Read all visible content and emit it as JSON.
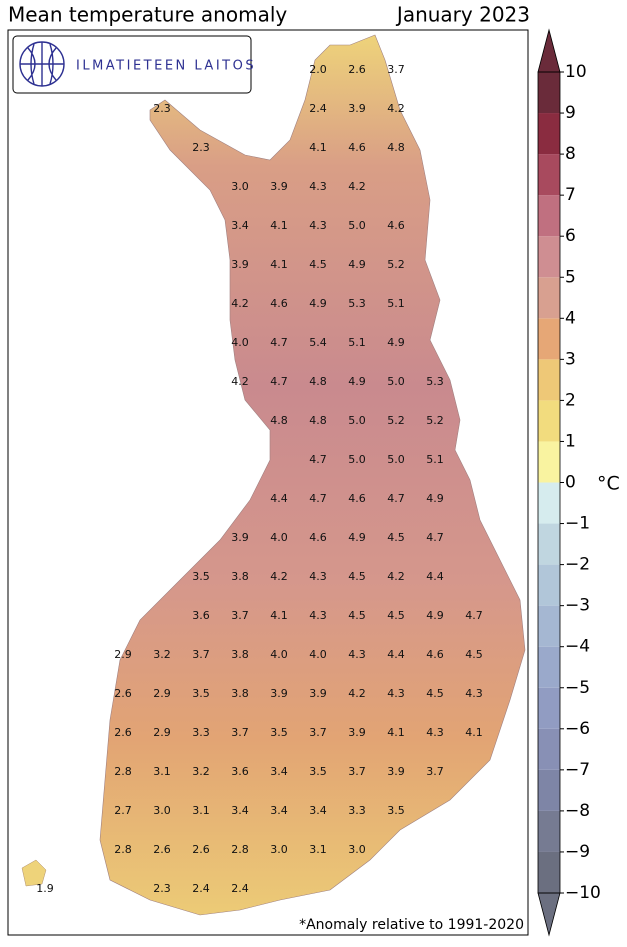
{
  "header": {
    "title": "Mean temperature anomaly",
    "period": "January 2023"
  },
  "logo": {
    "text": "ILMATIETEEN LAITOS"
  },
  "footnote": "*Anomaly relative to 1991-2020",
  "map": {
    "grid": [
      [
        null,
        null,
        null,
        null,
        null,
        null,
        null,
        "2.0",
        "2.6",
        "3.7"
      ],
      [
        null,
        null,
        null,
        "2.3",
        null,
        null,
        null,
        "2.4",
        "3.9",
        "4.2"
      ],
      [
        null,
        null,
        null,
        null,
        "2.3",
        null,
        null,
        "4.1",
        "4.6",
        "4.8"
      ],
      [
        null,
        null,
        null,
        null,
        null,
        "3.0",
        "3.9",
        "4.3",
        "4.2"
      ],
      [
        null,
        null,
        null,
        null,
        null,
        "3.4",
        "4.1",
        "4.3",
        "5.0",
        "4.6"
      ],
      [
        null,
        null,
        null,
        null,
        null,
        "3.9",
        "4.1",
        "4.5",
        "4.9",
        "5.2"
      ],
      [
        null,
        null,
        null,
        null,
        null,
        "4.2",
        "4.6",
        "4.9",
        "5.3",
        "5.1"
      ],
      [
        null,
        null,
        null,
        null,
        null,
        "4.0",
        "4.7",
        "5.4",
        "5.1",
        "4.9"
      ],
      [
        null,
        null,
        null,
        null,
        null,
        "4.2",
        "4.7",
        "4.8",
        "4.9",
        "5.0",
        "5.3"
      ],
      [
        null,
        null,
        null,
        null,
        null,
        null,
        "4.8",
        "4.8",
        "5.0",
        "5.2",
        "5.2"
      ],
      [
        null,
        null,
        null,
        null,
        null,
        null,
        null,
        "4.7",
        "5.0",
        "5.0",
        "5.1"
      ],
      [
        null,
        null,
        null,
        null,
        null,
        null,
        "4.4",
        "4.7",
        "4.6",
        "4.7",
        "4.9"
      ],
      [
        null,
        null,
        null,
        null,
        null,
        "3.9",
        "4.0",
        "4.6",
        "4.9",
        "4.5",
        "4.7"
      ],
      [
        null,
        null,
        null,
        null,
        "3.5",
        "3.8",
        "4.2",
        "4.3",
        "4.5",
        "4.2",
        "4.4"
      ],
      [
        null,
        null,
        null,
        null,
        "3.6",
        "3.7",
        "4.1",
        "4.3",
        "4.5",
        "4.5",
        "4.9",
        "4.7"
      ],
      [
        null,
        null,
        "2.9",
        "3.2",
        "3.7",
        "3.8",
        "4.0",
        "4.0",
        "4.3",
        "4.4",
        "4.6",
        "4.5"
      ],
      [
        null,
        null,
        "2.6",
        "2.9",
        "3.5",
        "3.8",
        "3.9",
        "3.9",
        "4.2",
        "4.3",
        "4.5",
        "4.3"
      ],
      [
        null,
        null,
        "2.6",
        "2.9",
        "3.3",
        "3.7",
        "3.5",
        "3.7",
        "3.9",
        "4.1",
        "4.3",
        "4.1"
      ],
      [
        null,
        null,
        "2.8",
        "3.1",
        "3.2",
        "3.6",
        "3.4",
        "3.5",
        "3.7",
        "3.9",
        "3.7"
      ],
      [
        null,
        null,
        "2.7",
        "3.0",
        "3.1",
        "3.4",
        "3.4",
        "3.4",
        "3.3",
        "3.5"
      ],
      [
        null,
        null,
        "2.8",
        "2.6",
        "2.6",
        "2.8",
        "3.0",
        "3.1",
        "3.0"
      ],
      [
        "1.9",
        null,
        null,
        "2.3",
        "2.4",
        "2.4"
      ]
    ]
  },
  "colorbar": {
    "unit": "°C",
    "lim": [
      -10,
      10
    ],
    "ticks": [
      {
        "value": -10,
        "label": "−10"
      },
      {
        "value": -9,
        "label": "−9"
      },
      {
        "value": -8,
        "label": "−8"
      },
      {
        "value": -7,
        "label": "−7"
      },
      {
        "value": -6,
        "label": "−6"
      },
      {
        "value": -5,
        "label": "−5"
      },
      {
        "value": -4,
        "label": "−4"
      },
      {
        "value": -3,
        "label": "−3"
      },
      {
        "value": -2,
        "label": "−2"
      },
      {
        "value": -1,
        "label": "−1"
      },
      0,
      1,
      2,
      3,
      4,
      5,
      6,
      7,
      8,
      9,
      10
    ],
    "colors": [
      "#6b6f80",
      "#767b92",
      "#7e85a6",
      "#8890b5",
      "#919cc2",
      "#9aa9cb",
      "#a5b7d2",
      "#b1c6d9",
      "#c0d6e0",
      "#d6ecee",
      "#f9f3a0",
      "#f2dc7e",
      "#eec877",
      "#e6a776",
      "#d8a090",
      "#cf8e92",
      "#c07080",
      "#a84a5e",
      "#8a2c40",
      "#6a2b3a"
    ]
  }
}
